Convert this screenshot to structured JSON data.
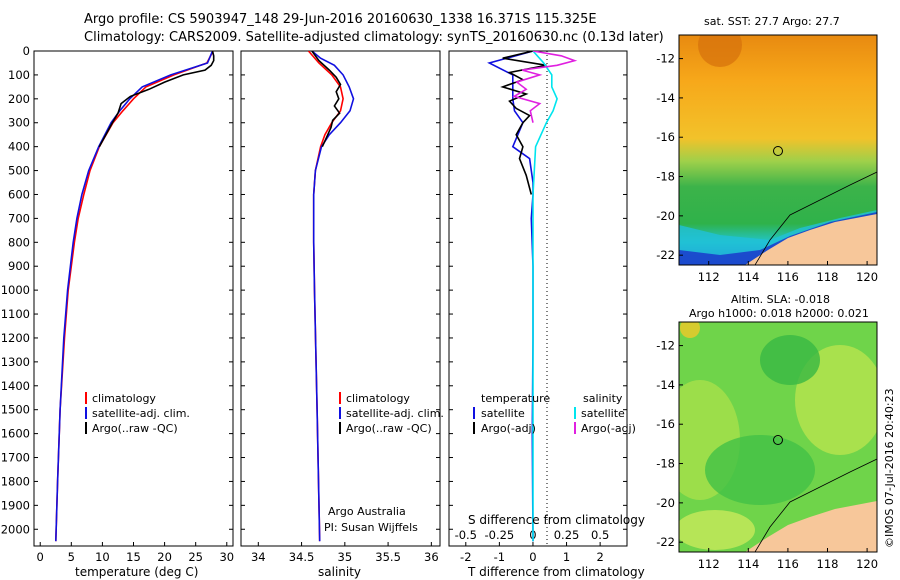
{
  "header": {
    "line1": "Argo profile: CS 5903947_148 29-Jun-2016 20160630_1338 16.371S 115.325E",
    "line2": "Climatology: CARS2009. Satellite-adjusted climatology: synTS_20160630.nc (0.13d later)"
  },
  "colors": {
    "climatology": "#ff0000",
    "satellite": "#1010e0",
    "argo": "#000000",
    "salinity_sat": "#00e5ee",
    "salinity_argo": "#e020e0",
    "land": "#f7c79a"
  },
  "chart_data": [
    {
      "type": "line",
      "title": "",
      "xlabel": "temperature (deg C)",
      "ylabel": "",
      "xlim": [
        -1,
        31
      ],
      "ylim": [
        2070,
        0
      ],
      "xticks": [
        "0",
        "5",
        "10",
        "15",
        "20",
        "25",
        "30"
      ],
      "yticks": [
        "0",
        "100",
        "200",
        "300",
        "400",
        "500",
        "600",
        "700",
        "800",
        "900",
        "1000",
        "1100",
        "1200",
        "1300",
        "1400",
        "1500",
        "1600",
        "1700",
        "1800",
        "1900",
        "2000"
      ],
      "legend": [
        "climatology",
        "satellite-adj. clim.",
        "Argo(..raw -QC)"
      ],
      "series": [
        {
          "name": "climatology",
          "depth": [
            0,
            50,
            100,
            150,
            200,
            250,
            300,
            400,
            500,
            600,
            700,
            800,
            1000,
            1200,
            1500,
            1800,
            2050
          ],
          "values": [
            27.8,
            26.8,
            21.5,
            17.0,
            15.0,
            13.3,
            11.7,
            9.5,
            8.0,
            7.0,
            6.1,
            5.5,
            4.5,
            3.9,
            3.2,
            2.8,
            2.5
          ]
        },
        {
          "name": "satellite-adj. clim.",
          "depth": [
            0,
            50,
            100,
            150,
            200,
            250,
            300,
            400,
            500,
            600,
            700,
            800,
            1000,
            1200,
            1500,
            1800,
            2050
          ],
          "values": [
            27.7,
            26.9,
            21.0,
            16.4,
            14.4,
            12.8,
            11.4,
            9.4,
            7.8,
            6.7,
            5.9,
            5.3,
            4.4,
            3.8,
            3.2,
            2.8,
            2.5
          ]
        },
        {
          "name": "Argo(..raw -QC)",
          "depth": [
            0,
            20,
            40,
            60,
            80,
            100,
            130,
            160,
            190,
            220,
            260,
            300,
            400
          ],
          "values": [
            27.7,
            27.9,
            27.9,
            27.5,
            26.5,
            23.0,
            20.0,
            17.5,
            14.5,
            13.0,
            12.5,
            11.6,
            9.5
          ]
        }
      ]
    },
    {
      "type": "line",
      "xlabel": "salinity",
      "xlim": [
        33.8,
        36.1
      ],
      "ylim": [
        2070,
        0
      ],
      "xticks": [
        "34",
        "34.5",
        "35",
        "35.5",
        "36"
      ],
      "legend": [
        "climatology",
        "satellite-adj. clim.",
        "Argo(..raw -QC)"
      ],
      "annotations": [
        "Argo Australia",
        "PI: Susan Wijffels"
      ],
      "series": [
        {
          "name": "climatology",
          "depth": [
            0,
            50,
            100,
            150,
            200,
            250,
            300,
            350,
            400,
            500,
            600,
            800,
            1000,
            1500,
            2050
          ],
          "values": [
            34.58,
            34.7,
            34.85,
            34.95,
            34.98,
            34.95,
            34.85,
            34.77,
            34.72,
            34.66,
            34.64,
            34.64,
            34.65,
            34.68,
            34.71
          ]
        },
        {
          "name": "satellite-adj. clim.",
          "depth": [
            0,
            30,
            60,
            100,
            150,
            200,
            250,
            300,
            350,
            400,
            500,
            600,
            800,
            1000,
            1500,
            2050
          ],
          "values": [
            34.62,
            34.72,
            34.88,
            34.98,
            35.05,
            35.1,
            35.06,
            34.95,
            34.82,
            34.73,
            34.66,
            34.64,
            34.64,
            34.65,
            34.68,
            34.71
          ]
        },
        {
          "name": "Argo(..raw -QC)",
          "depth": [
            0,
            40,
            80,
            110,
            140,
            170,
            200,
            230,
            260,
            290,
            320,
            360,
            400
          ],
          "values": [
            34.62,
            34.7,
            34.82,
            34.9,
            34.95,
            34.9,
            34.93,
            34.88,
            34.94,
            34.86,
            34.84,
            34.79,
            34.74
          ]
        }
      ]
    },
    {
      "type": "line",
      "xlabel": "T difference from climatology",
      "xlabel2": "S difference from climatology",
      "xlim": [
        -2.5,
        2.8
      ],
      "ylim": [
        2070,
        0
      ],
      "xticks": [
        "-2",
        "-1",
        "0",
        "1",
        "2"
      ],
      "xticks2": [
        "-0.5",
        "-0.25",
        "0",
        "0.25",
        "0.5"
      ],
      "legend_temperature_title": "temperature",
      "legend_salinity_title": "salinity",
      "legend_temperature": [
        "satellite",
        "Argo(-adj)"
      ],
      "legend_salinity": [
        "satellite",
        "Argo(-adj)"
      ],
      "series": [
        {
          "name": "temperature satellite",
          "depth": [
            0,
            50,
            100,
            150,
            200,
            250,
            300,
            400,
            450,
            500,
            550,
            600,
            700,
            900,
            1200,
            1600,
            2050
          ],
          "values": [
            0.0,
            -1.3,
            -0.6,
            -0.6,
            -0.6,
            -0.55,
            -0.3,
            -0.6,
            -0.1,
            -0.05,
            0.0,
            0.0,
            -0.05,
            0.0,
            0.0,
            -0.02,
            0.0
          ]
        },
        {
          "name": "temperature Argo(-adj)",
          "depth": [
            0,
            30,
            60,
            90,
            120,
            150,
            180,
            210,
            240,
            270,
            300,
            350,
            400,
            450,
            520,
            600
          ],
          "values": [
            0.0,
            -0.9,
            0.4,
            -0.7,
            -0.3,
            -0.9,
            -0.2,
            -0.7,
            -0.5,
            -0.1,
            -0.3,
            -0.5,
            -0.3,
            -0.4,
            -0.2,
            -0.05
          ]
        },
        {
          "name": "salinity satellite",
          "depth": [
            0,
            50,
            100,
            150,
            200,
            250,
            300,
            400,
            600,
            900,
            1200,
            1600,
            2050
          ],
          "values": [
            0.0,
            0.08,
            0.14,
            0.14,
            0.18,
            0.15,
            0.1,
            0.02,
            0.0,
            0.0,
            0.0,
            0.0,
            0.0
          ]
        },
        {
          "name": "salinity Argo(-adj)",
          "depth": [
            0,
            20,
            40,
            60,
            80,
            100,
            130,
            160,
            190,
            220,
            250,
            300
          ],
          "values": [
            0.0,
            0.21,
            0.31,
            0.18,
            -0.08,
            0.05,
            -0.12,
            -0.05,
            -0.14,
            0.05,
            -0.02,
            0.0
          ]
        }
      ]
    },
    {
      "type": "heatmap",
      "title": "sat. SST: 27.7 Argo: 27.7",
      "xticks": [
        "112",
        "114",
        "116",
        "118",
        "120"
      ],
      "yticks": [
        "-12",
        "-14",
        "-16",
        "-18",
        "-20",
        "-22"
      ],
      "xlim": [
        110.5,
        120.5
      ],
      "ylim": [
        -22.5,
        -10.8
      ],
      "marker": {
        "lon": 115.325,
        "lat": -16.371
      }
    },
    {
      "type": "heatmap",
      "title": "Altim. SLA: -0.018",
      "subtitle": "Argo h1000: 0.018 h2000: 0.021",
      "xticks": [
        "112",
        "114",
        "116",
        "118",
        "120"
      ],
      "yticks": [
        "-12",
        "-14",
        "-16",
        "-18",
        "-20",
        "-22"
      ],
      "xlim": [
        110.5,
        120.5
      ],
      "ylim": [
        -22.5,
        -10.8
      ],
      "marker": {
        "lon": 115.325,
        "lat": -16.371
      }
    }
  ],
  "credit": "©IMOS 07-Jul-2016 20:40:23"
}
